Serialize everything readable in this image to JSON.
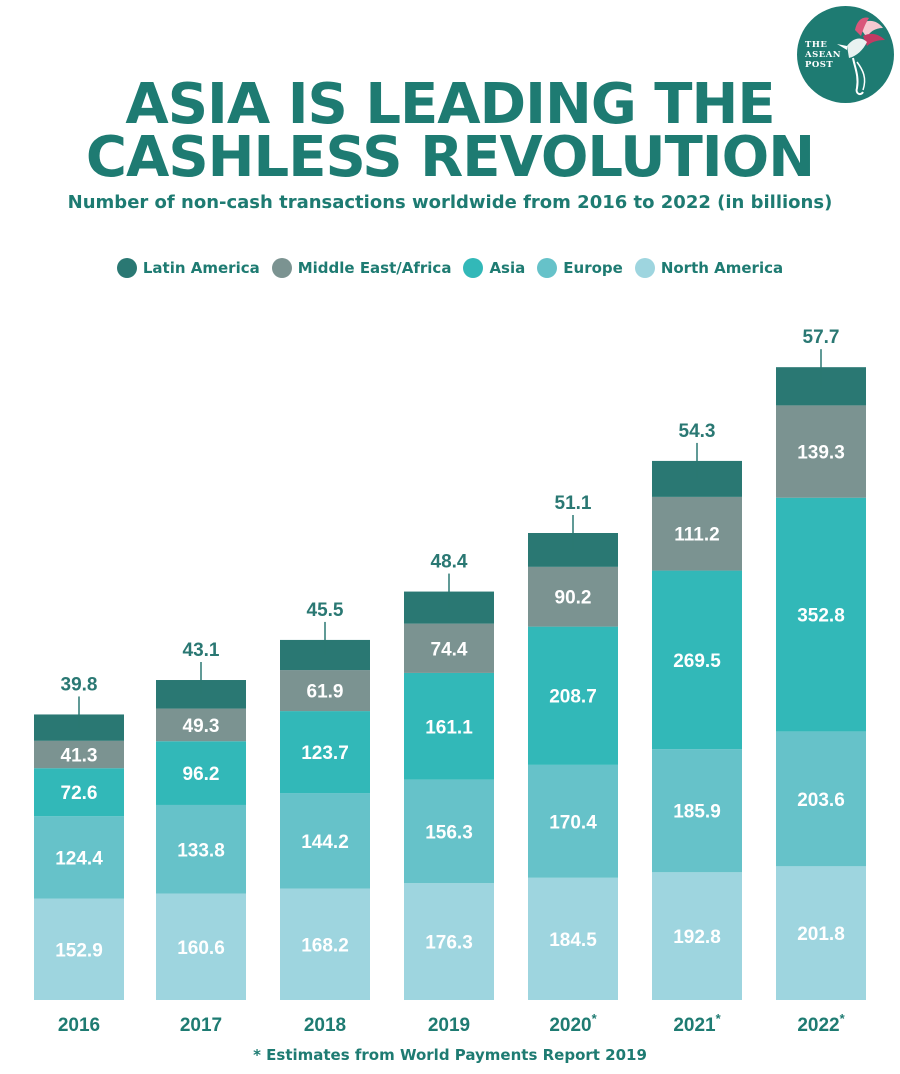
{
  "header": {
    "title_line1": "ASIA IS LEADING THE",
    "title_line2": "CASHLESS REVOLUTION",
    "subtitle": "Number of non-cash transactions worldwide from 2016 to 2022 (in billions)"
  },
  "logo": {
    "text": "THE\nASEAN\nPOST"
  },
  "footnote": "* Estimates from World Payments Report 2019",
  "colors": {
    "title": "#1e7b72",
    "background": "#ffffff",
    "bar_label": "#ffffff"
  },
  "chart_data": {
    "type": "bar",
    "stacked": true,
    "title": "ASIA IS LEADING THE CASHLESS REVOLUTION",
    "subtitle": "Number of non-cash transactions worldwide from 2016 to 2022 (in billions)",
    "categories": [
      "2016",
      "2017",
      "2018",
      "2019",
      "2020*",
      "2021*",
      "2022*"
    ],
    "legend_position": "top",
    "grid": false,
    "series": [
      {
        "name": "North America",
        "color": "#9ed5df",
        "values": [
          152.9,
          160.6,
          168.2,
          176.3,
          184.5,
          192.8,
          201.8
        ]
      },
      {
        "name": "Europe",
        "color": "#66c2c9",
        "values": [
          124.4,
          133.8,
          144.2,
          156.3,
          170.4,
          185.9,
          203.6
        ]
      },
      {
        "name": "Asia",
        "color": "#32b8b8",
        "values": [
          72.6,
          96.2,
          123.7,
          161.1,
          208.7,
          269.5,
          352.8
        ]
      },
      {
        "name": "Middle East/Africa",
        "color": "#7b9391",
        "values": [
          41.3,
          49.3,
          61.9,
          74.4,
          90.2,
          111.2,
          139.3
        ]
      },
      {
        "name": "Latin America",
        "color": "#2a7873",
        "values": [
          39.8,
          43.1,
          45.5,
          48.4,
          51.1,
          54.3,
          57.7
        ]
      }
    ],
    "legend_order": [
      "Latin America",
      "Middle East/Africa",
      "Asia",
      "Europe",
      "North America"
    ],
    "ylim": [
      0,
      1000
    ]
  }
}
